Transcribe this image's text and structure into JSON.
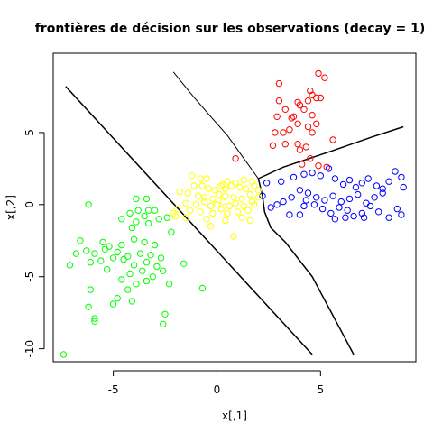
{
  "chart_data": {
    "type": "scatter",
    "title": "frontières de décision sur les observations (decay = 1)",
    "xlabel": "x[,1]",
    "ylabel": "x[,2]",
    "xlim": [
      -7.9,
      9.6
    ],
    "ylim": [
      -10.9,
      10.5
    ],
    "x_ticks": [
      -5,
      0,
      5
    ],
    "y_ticks": [
      -10,
      -5,
      0,
      5
    ],
    "grid": false,
    "legend": "none",
    "colors": {
      "red": "#ff0000",
      "blue": "#0000ff",
      "yellow": "#ffff00",
      "green": "#00ff00",
      "boundary": "#000000"
    },
    "series": [
      {
        "color": "#ff0000",
        "points": [
          [
            3.0,
            8.4
          ],
          [
            4.9,
            9.1
          ],
          [
            5.2,
            8.8
          ],
          [
            3.0,
            7.2
          ],
          [
            3.3,
            6.6
          ],
          [
            3.9,
            7.1
          ],
          [
            4.0,
            6.9
          ],
          [
            4.2,
            6.6
          ],
          [
            4.4,
            7.2
          ],
          [
            4.5,
            7.9
          ],
          [
            4.6,
            7.6
          ],
          [
            4.8,
            7.4
          ],
          [
            5.0,
            7.4
          ],
          [
            3.6,
            6.0
          ],
          [
            3.7,
            6.1
          ],
          [
            4.6,
            6.2
          ],
          [
            4.8,
            5.6
          ],
          [
            2.9,
            6.1
          ],
          [
            4.4,
            5.4
          ],
          [
            4.6,
            5.0
          ],
          [
            2.8,
            5.0
          ],
          [
            3.2,
            5.0
          ],
          [
            3.3,
            4.2
          ],
          [
            2.7,
            4.1
          ],
          [
            3.9,
            4.2
          ],
          [
            4.0,
            3.8
          ],
          [
            4.3,
            4.0
          ],
          [
            5.6,
            4.5
          ],
          [
            4.5,
            3.2
          ],
          [
            4.1,
            2.8
          ],
          [
            4.9,
            2.7
          ],
          [
            5.3,
            2.6
          ],
          [
            0.9,
            3.2
          ],
          [
            3.5,
            5.2
          ],
          [
            3.9,
            5.6
          ]
        ]
      },
      {
        "color": "#0000ff",
        "points": [
          [
            2.4,
            1.5
          ],
          [
            3.1,
            1.6
          ],
          [
            3.7,
            1.9
          ],
          [
            4.2,
            2.1
          ],
          [
            4.6,
            2.2
          ],
          [
            5.0,
            2.0
          ],
          [
            5.4,
            2.5
          ],
          [
            5.7,
            1.8
          ],
          [
            6.1,
            1.4
          ],
          [
            6.4,
            1.7
          ],
          [
            6.7,
            1.2
          ],
          [
            7.0,
            1.5
          ],
          [
            7.3,
            1.8
          ],
          [
            7.7,
            1.3
          ],
          [
            8.0,
            1.1
          ],
          [
            8.3,
            1.6
          ],
          [
            8.6,
            2.3
          ],
          [
            8.9,
            1.9
          ],
          [
            9.0,
            1.2
          ],
          [
            4.0,
            1.0
          ],
          [
            4.4,
            0.8
          ],
          [
            4.8,
            0.5
          ],
          [
            5.2,
            0.3
          ],
          [
            5.6,
            0.6
          ],
          [
            6.0,
            0.2
          ],
          [
            6.4,
            0.4
          ],
          [
            6.8,
            0.7
          ],
          [
            7.2,
            0.1
          ],
          [
            7.6,
            0.5
          ],
          [
            8.0,
            0.8
          ],
          [
            3.2,
            0.2
          ],
          [
            3.6,
            0.5
          ],
          [
            4.2,
            -0.1
          ],
          [
            4.7,
            0.0
          ],
          [
            5.1,
            -0.3
          ],
          [
            5.5,
            -0.6
          ],
          [
            5.9,
            -0.2
          ],
          [
            6.3,
            -0.4
          ],
          [
            6.6,
            -0.8
          ],
          [
            7.0,
            -0.6
          ],
          [
            7.4,
            -0.1
          ],
          [
            7.8,
            -0.5
          ],
          [
            8.7,
            -0.3
          ],
          [
            8.9,
            -0.7
          ],
          [
            8.3,
            -0.9
          ],
          [
            7.1,
            -0.9
          ],
          [
            6.2,
            -0.9
          ],
          [
            5.7,
            -1.0
          ],
          [
            4.0,
            -0.7
          ],
          [
            3.5,
            -0.7
          ],
          [
            2.6,
            -0.2
          ],
          [
            2.2,
            0.6
          ],
          [
            2.9,
            0.0
          ],
          [
            4.3,
            0.3
          ]
        ]
      },
      {
        "color": "#ffff00",
        "points": [
          [
            -1.2,
            2.0
          ],
          [
            -0.5,
            1.8
          ],
          [
            0.5,
            1.6
          ],
          [
            0.9,
            1.5
          ],
          [
            1.3,
            1.7
          ],
          [
            1.7,
            1.6
          ],
          [
            -1.1,
            1.3
          ],
          [
            -0.7,
            1.3
          ],
          [
            -0.4,
            1.1
          ],
          [
            -0.1,
            1.0
          ],
          [
            0.2,
            1.3
          ],
          [
            0.3,
            1.4
          ],
          [
            0.7,
            1.3
          ],
          [
            1.1,
            1.2
          ],
          [
            1.4,
            1.1
          ],
          [
            1.8,
            1.3
          ],
          [
            2.0,
            1.0
          ],
          [
            -1.8,
            0.9
          ],
          [
            -1.4,
            0.8
          ],
          [
            -0.9,
            0.6
          ],
          [
            -0.6,
            0.5
          ],
          [
            -0.2,
            0.4
          ],
          [
            0.1,
            0.7
          ],
          [
            0.4,
            0.6
          ],
          [
            0.8,
            0.5
          ],
          [
            1.2,
            0.4
          ],
          [
            1.6,
            0.7
          ],
          [
            2.0,
            0.5
          ],
          [
            -1.5,
            0.1
          ],
          [
            -1.0,
            0.0
          ],
          [
            -0.6,
            0.2
          ],
          [
            -0.3,
            -0.1
          ],
          [
            0.0,
            0.0
          ],
          [
            0.3,
            0.2
          ],
          [
            0.6,
            -0.1
          ],
          [
            0.9,
            0.1
          ],
          [
            1.3,
            -0.1
          ],
          [
            1.7,
            0.2
          ],
          [
            -1.9,
            -0.3
          ],
          [
            -1.3,
            -0.4
          ],
          [
            -0.8,
            -0.5
          ],
          [
            -0.2,
            -0.6
          ],
          [
            0.2,
            -0.3
          ],
          [
            0.5,
            -0.6
          ],
          [
            1.0,
            -0.5
          ],
          [
            1.5,
            -0.4
          ],
          [
            -2.0,
            -0.8
          ],
          [
            -1.5,
            -0.9
          ],
          [
            -0.5,
            -1.0
          ],
          [
            0.4,
            -1.1
          ],
          [
            1.2,
            -0.9
          ],
          [
            1.6,
            -1.1
          ],
          [
            0.8,
            -2.2
          ],
          [
            -0.3,
            -1.5
          ],
          [
            -0.8,
            1.8
          ],
          [
            0.4,
            1.1
          ],
          [
            1.8,
            0.0
          ],
          [
            -2.1,
            -0.6
          ]
        ]
      },
      {
        "color": "#00ff00",
        "points": [
          [
            -6.2,
            0.0
          ],
          [
            -3.9,
            0.4
          ],
          [
            -3.4,
            0.4
          ],
          [
            -3.8,
            -0.4
          ],
          [
            -3.3,
            -0.4
          ],
          [
            -4.2,
            -0.6
          ],
          [
            -3.0,
            -0.4
          ],
          [
            -2.4,
            -0.9
          ],
          [
            -4.6,
            -1.0
          ],
          [
            -3.9,
            -1.2
          ],
          [
            -3.3,
            -1.3
          ],
          [
            -2.8,
            -1.0
          ],
          [
            -3.5,
            -0.8
          ],
          [
            -4.1,
            -1.6
          ],
          [
            -2.2,
            -1.9
          ],
          [
            -6.6,
            -2.5
          ],
          [
            -5.5,
            -2.6
          ],
          [
            -5.2,
            -2.9
          ],
          [
            -4.6,
            -2.8
          ],
          [
            -4.0,
            -2.4
          ],
          [
            -3.5,
            -2.6
          ],
          [
            -3.0,
            -2.8
          ],
          [
            -6.8,
            -3.4
          ],
          [
            -6.3,
            -3.2
          ],
          [
            -5.9,
            -3.4
          ],
          [
            -5.4,
            -3.1
          ],
          [
            -4.8,
            -3.3
          ],
          [
            -4.3,
            -3.6
          ],
          [
            -3.7,
            -3.4
          ],
          [
            -3.2,
            -3.5
          ],
          [
            -2.7,
            -3.7
          ],
          [
            -6.1,
            -4.0
          ],
          [
            -5.6,
            -3.9
          ],
          [
            -5.0,
            -3.7
          ],
          [
            -4.5,
            -3.8
          ],
          [
            -4.0,
            -4.2
          ],
          [
            -3.4,
            -4.0
          ],
          [
            -2.9,
            -4.3
          ],
          [
            -7.1,
            -4.2
          ],
          [
            -5.3,
            -4.5
          ],
          [
            -4.2,
            -4.8
          ],
          [
            -3.6,
            -4.6
          ],
          [
            -3.1,
            -5.0
          ],
          [
            -2.6,
            -4.6
          ],
          [
            -4.6,
            -5.2
          ],
          [
            -3.9,
            -5.5
          ],
          [
            -3.4,
            -5.3
          ],
          [
            -2.3,
            -5.5
          ],
          [
            -6.1,
            -5.9
          ],
          [
            -4.3,
            -5.9
          ],
          [
            -1.6,
            -4.1
          ],
          [
            -0.7,
            -5.8
          ],
          [
            -4.8,
            -6.5
          ],
          [
            -4.1,
            -6.7
          ],
          [
            -5.0,
            -6.9
          ],
          [
            -6.2,
            -7.1
          ],
          [
            -2.5,
            -7.6
          ],
          [
            -5.9,
            -7.9
          ],
          [
            -2.6,
            -8.3
          ],
          [
            -5.9,
            -8.1
          ],
          [
            -7.4,
            -10.4
          ]
        ]
      }
    ],
    "boundaries": [
      {
        "name": "diag-green-yellow",
        "points": [
          [
            -7.3,
            8.2
          ],
          [
            4.6,
            -10.4
          ]
        ]
      },
      {
        "name": "red-yellow",
        "points": [
          [
            -2.1,
            9.2
          ],
          [
            -1.2,
            7.6
          ],
          [
            -0.3,
            6.1
          ],
          [
            0.5,
            4.8
          ],
          [
            1.3,
            3.2
          ],
          [
            2.0,
            1.8
          ]
        ]
      },
      {
        "name": "red-blue",
        "points": [
          [
            2.0,
            1.8
          ],
          [
            3.2,
            2.6
          ],
          [
            5.5,
            3.7
          ],
          [
            7.5,
            4.7
          ],
          [
            9.0,
            5.4
          ]
        ]
      },
      {
        "name": "yellow-blue",
        "points": [
          [
            2.0,
            1.8
          ],
          [
            2.2,
            0.6
          ],
          [
            2.3,
            -0.5
          ],
          [
            2.6,
            -1.6
          ],
          [
            3.3,
            -2.6
          ],
          [
            4.6,
            -5.0
          ],
          [
            6.6,
            -10.4
          ]
        ]
      }
    ]
  }
}
